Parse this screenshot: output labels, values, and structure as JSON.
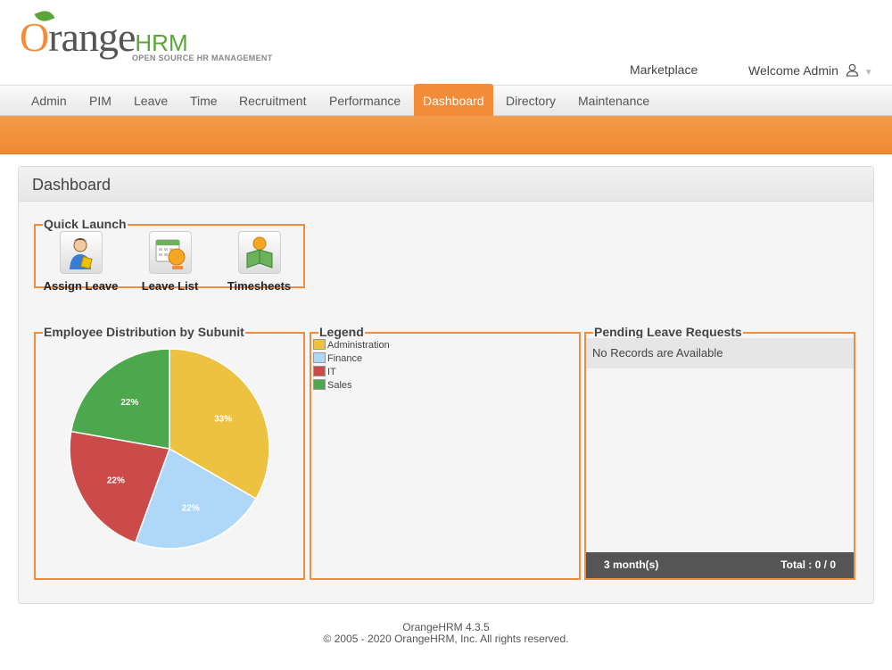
{
  "branding": {
    "logo_text": "OrangeHRM",
    "logo_word": "range",
    "logo_hrm": "HRM",
    "tagline": "OPEN SOURCE HR MANAGEMENT",
    "marketplace": "Marketplace",
    "welcome": "Welcome Admin"
  },
  "menu": {
    "items": [
      {
        "label": "Admin"
      },
      {
        "label": "PIM"
      },
      {
        "label": "Leave"
      },
      {
        "label": "Time"
      },
      {
        "label": "Recruitment"
      },
      {
        "label": "Performance"
      },
      {
        "label": "Dashboard",
        "active": true
      },
      {
        "label": "Directory"
      },
      {
        "label": "Maintenance"
      }
    ]
  },
  "dashboard": {
    "title": "Dashboard",
    "quick_launch": {
      "title": "Quick Launch",
      "items": [
        {
          "label": "Assign Leave",
          "icon": "assign-leave-icon"
        },
        {
          "label": "Leave List",
          "icon": "leave-list-icon"
        },
        {
          "label": "Timesheets",
          "icon": "timesheets-icon"
        }
      ]
    },
    "distribution_title": "Employee Distribution by Subunit",
    "legend_title": "Legend",
    "pending": {
      "title": "Pending Leave Requests",
      "empty": "No Records are Available",
      "period": "3 month(s)",
      "total": "Total : 0 / 0"
    }
  },
  "chart_data": {
    "type": "pie",
    "title": "Employee Distribution by Subunit",
    "categories": [
      "Administration",
      "Finance",
      "IT",
      "Sales"
    ],
    "values": [
      33,
      22,
      22,
      22
    ],
    "labels": [
      "33%",
      "22%",
      "22%",
      "22%"
    ],
    "colors": [
      "#edc240",
      "#afd8f8",
      "#cb4b4b",
      "#4da74d"
    ]
  },
  "colors": {
    "accent": "#f28c38",
    "brand_green": "#5aa538"
  },
  "footer": {
    "version": "OrangeHRM 4.3.5",
    "copyright": "© 2005 - 2020 OrangeHRM, Inc. All rights reserved."
  }
}
